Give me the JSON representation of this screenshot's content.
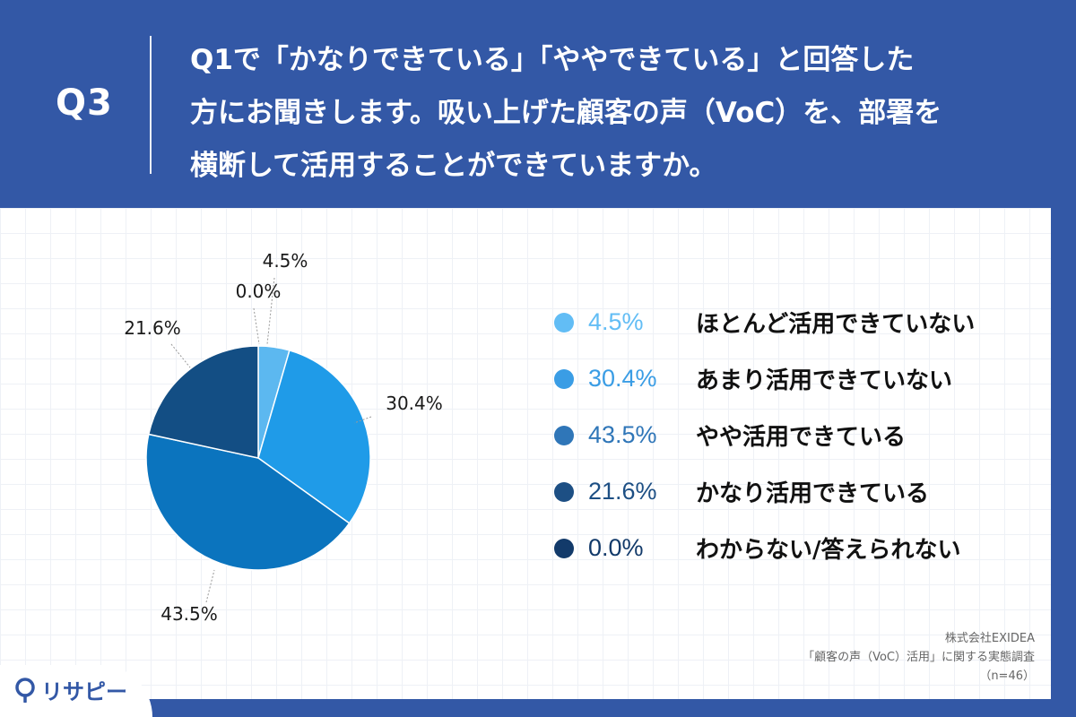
{
  "header": {
    "q_label": "Q3",
    "question_lines": [
      "Q1で「かなりできている」「ややできている」と回答した",
      "方にお聞きします。吸い上げた顧客の声（VoC）を、部署を",
      "横断して活用することができていますか。"
    ]
  },
  "chart_data": {
    "type": "pie",
    "categories": [
      "ほとんど活用できていない",
      "あまり活用できていない",
      "やや活用できている",
      "かなり活用できている",
      "わからない/答えられない"
    ],
    "values": [
      4.5,
      30.4,
      43.5,
      21.6,
      0.0
    ],
    "labels": [
      "4.5%",
      "30.4%",
      "43.5%",
      "21.6%",
      "0.0%"
    ],
    "colors": [
      "#5cb8f0",
      "#1f9be8",
      "#0b74be",
      "#134e84",
      "#0e3566"
    ],
    "legend_colors": [
      "#62bdf5",
      "#3a9de5",
      "#2f76b8",
      "#1d4f84",
      "#123a6a"
    ],
    "legend_position": "right"
  },
  "source": {
    "company": "株式会社EXIDEA",
    "survey": "「顧客の声（VoC）活用」に関する実態調査",
    "sample": "（n=46）"
  },
  "logo": {
    "text": "リサピー"
  }
}
